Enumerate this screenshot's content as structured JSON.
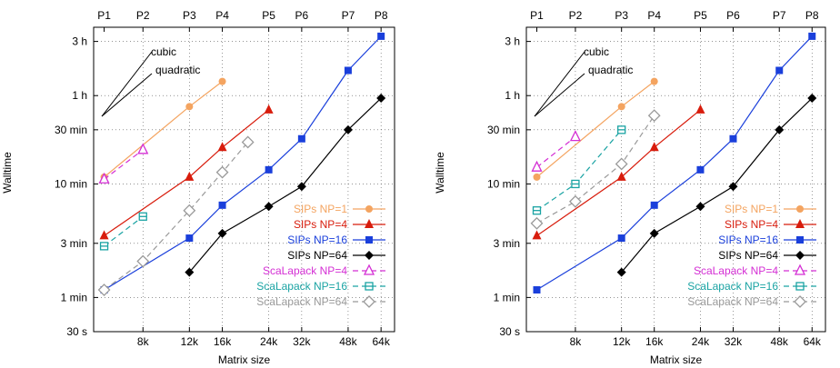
{
  "chart_data": [
    {
      "type": "line",
      "xlabel": "Matrix size",
      "ylabel": "Walltime",
      "x_scale": "log",
      "y_scale": "log",
      "x_unit": "k",
      "y_unit": "seconds",
      "xlim": [
        5.2,
        72
      ],
      "ylim": [
        30,
        14400
      ],
      "x_ticks": [
        {
          "value": 8,
          "label": "8k"
        },
        {
          "value": 12,
          "label": "12k"
        },
        {
          "value": 16,
          "label": "16k"
        },
        {
          "value": 24,
          "label": "24k"
        },
        {
          "value": 32,
          "label": "32k"
        },
        {
          "value": 48,
          "label": "48k"
        },
        {
          "value": 64,
          "label": "64k"
        }
      ],
      "y_ticks": [
        {
          "value": 30,
          "label": "30 s"
        },
        {
          "value": 60,
          "label": "1 min"
        },
        {
          "value": 180,
          "label": "3 min"
        },
        {
          "value": 600,
          "label": "10 min"
        },
        {
          "value": 1800,
          "label": "30 min"
        },
        {
          "value": 3600,
          "label": "1 h"
        },
        {
          "value": 10800,
          "label": "3 h"
        }
      ],
      "top_ticks": [
        {
          "value": 5.7,
          "label": "P1"
        },
        {
          "value": 8,
          "label": "P2"
        },
        {
          "value": 12,
          "label": "P3"
        },
        {
          "value": 16,
          "label": "P4"
        },
        {
          "value": 24,
          "label": "P5"
        },
        {
          "value": 32,
          "label": "P6"
        },
        {
          "value": 48,
          "label": "P7"
        },
        {
          "value": 64,
          "label": "P8"
        }
      ],
      "grid": "dotted",
      "legend_position": "right-inside",
      "annotations": [
        "cubic",
        "quadratic"
      ],
      "series": [
        {
          "name": "SIPs NP=1",
          "color": "#f4a460",
          "dash": "solid",
          "marker": "circle",
          "x": [
            5.7,
            12,
            16
          ],
          "y": [
            690,
            2880,
            4800
          ]
        },
        {
          "name": "SIPs NP=4",
          "color": "#d81c0c",
          "dash": "solid",
          "marker": "triangle",
          "x": [
            5.7,
            12,
            16,
            24
          ],
          "y": [
            210,
            690,
            1260,
            2700
          ]
        },
        {
          "name": "SIPs NP=16",
          "color": "#1a3fdb",
          "dash": "solid",
          "marker": "square",
          "x": [
            5.7,
            12,
            16,
            24,
            32,
            48,
            64
          ],
          "y": [
            70,
            200,
            390,
            800,
            1500,
            6000,
            12000
          ]
        },
        {
          "name": "SIPs NP=64",
          "color": "#000000",
          "dash": "solid",
          "marker": "diamond",
          "x": [
            12,
            16,
            24,
            32,
            48,
            64
          ],
          "y": [
            100,
            220,
            380,
            570,
            1800,
            3420
          ]
        },
        {
          "name": "ScaLapack NP=4",
          "color": "#d42fd4",
          "dash": "dashed",
          "marker": "triangle-open",
          "x": [
            5.7,
            8
          ],
          "y": [
            660,
            1200
          ]
        },
        {
          "name": "ScaLapack NP=16",
          "color": "#1aa3a3",
          "dash": "dashed",
          "marker": "square-open",
          "x": [
            5.7,
            8
          ],
          "y": [
            170,
            310
          ]
        },
        {
          "name": "ScaLapack NP=64",
          "color": "#999999",
          "dash": "dashed",
          "marker": "diamond-open",
          "x": [
            5.7,
            8,
            12,
            16,
            20
          ],
          "y": [
            70,
            125,
            350,
            760,
            1400
          ]
        }
      ]
    },
    {
      "type": "line",
      "xlabel": "Matrix size",
      "ylabel": "Walltime",
      "x_scale": "log",
      "y_scale": "log",
      "x_unit": "k",
      "y_unit": "seconds",
      "xlim": [
        5.2,
        72
      ],
      "ylim": [
        30,
        14400
      ],
      "x_ticks": [
        {
          "value": 8,
          "label": "8k"
        },
        {
          "value": 12,
          "label": "12k"
        },
        {
          "value": 16,
          "label": "16k"
        },
        {
          "value": 24,
          "label": "24k"
        },
        {
          "value": 32,
          "label": "32k"
        },
        {
          "value": 48,
          "label": "48k"
        },
        {
          "value": 64,
          "label": "64k"
        }
      ],
      "y_ticks": [
        {
          "value": 30,
          "label": "30 s"
        },
        {
          "value": 60,
          "label": "1 min"
        },
        {
          "value": 180,
          "label": "3 min"
        },
        {
          "value": 600,
          "label": "10 min"
        },
        {
          "value": 1800,
          "label": "30 min"
        },
        {
          "value": 3600,
          "label": "1 h"
        },
        {
          "value": 10800,
          "label": "3 h"
        }
      ],
      "top_ticks": [
        {
          "value": 5.7,
          "label": "P1"
        },
        {
          "value": 8,
          "label": "P2"
        },
        {
          "value": 12,
          "label": "P3"
        },
        {
          "value": 16,
          "label": "P4"
        },
        {
          "value": 24,
          "label": "P5"
        },
        {
          "value": 32,
          "label": "P6"
        },
        {
          "value": 48,
          "label": "P7"
        },
        {
          "value": 64,
          "label": "P8"
        }
      ],
      "grid": "dotted",
      "legend_position": "right-inside",
      "annotations": [
        "cubic",
        "quadratic"
      ],
      "series": [
        {
          "name": "SIPs NP=1",
          "color": "#f4a460",
          "dash": "solid",
          "marker": "circle",
          "x": [
            5.7,
            12,
            16
          ],
          "y": [
            690,
            2880,
            4800
          ]
        },
        {
          "name": "SIPs NP=4",
          "color": "#d81c0c",
          "dash": "solid",
          "marker": "triangle",
          "x": [
            5.7,
            12,
            16,
            24
          ],
          "y": [
            210,
            690,
            1260,
            2700
          ]
        },
        {
          "name": "SIPs NP=16",
          "color": "#1a3fdb",
          "dash": "solid",
          "marker": "square",
          "x": [
            5.7,
            12,
            16,
            24,
            32,
            48,
            64
          ],
          "y": [
            70,
            200,
            390,
            800,
            1500,
            6000,
            12000
          ]
        },
        {
          "name": "SIPs NP=64",
          "color": "#000000",
          "dash": "solid",
          "marker": "diamond",
          "x": [
            12,
            16,
            24,
            32,
            48,
            64
          ],
          "y": [
            100,
            220,
            380,
            570,
            1800,
            3420
          ]
        },
        {
          "name": "ScaLapack NP=4",
          "color": "#d42fd4",
          "dash": "dashed",
          "marker": "triangle-open",
          "x": [
            5.7,
            8
          ],
          "y": [
            840,
            1560
          ]
        },
        {
          "name": "ScaLapack NP=16",
          "color": "#1aa3a3",
          "dash": "dashed",
          "marker": "square-open",
          "x": [
            5.7,
            8,
            12
          ],
          "y": [
            350,
            600,
            1800
          ]
        },
        {
          "name": "ScaLapack NP=64",
          "color": "#999999",
          "dash": "dashed",
          "marker": "diamond-open",
          "x": [
            5.7,
            8,
            12,
            16
          ],
          "y": [
            270,
            420,
            900,
            2400
          ]
        }
      ]
    }
  ]
}
